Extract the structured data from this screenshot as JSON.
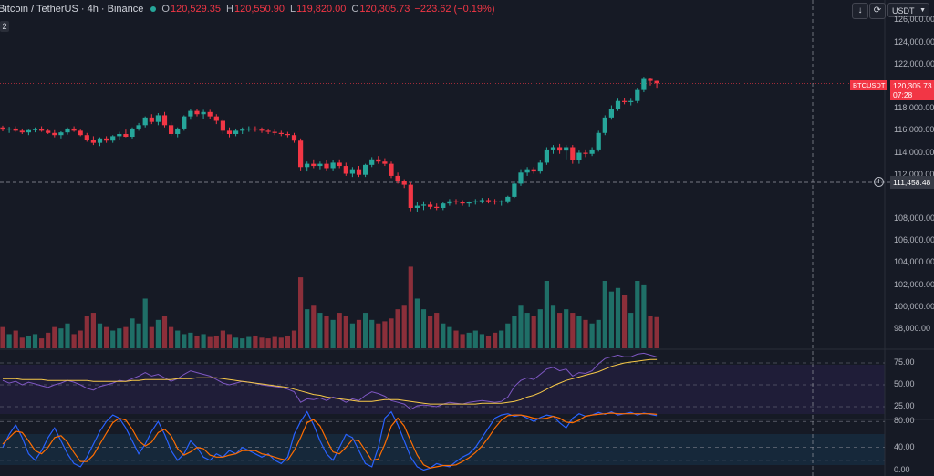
{
  "header": {
    "symbol": "Bitcoin / TetherUS · 4h · Binance",
    "open_label": "O",
    "open": "120,529.35",
    "high_label": "H",
    "high": "120,550.90",
    "low_label": "L",
    "low": "119,820.00",
    "close_label": "C",
    "close": "120,305.73",
    "change": "−223.62 (−0.19%)",
    "indicator_badge": "2"
  },
  "toolbar": {
    "download_icon": "arrow-down-icon",
    "fullscreen_icon": "fullscreen-icon",
    "currency": "USDT"
  },
  "price_axis": {
    "labels": [
      "126,000.00",
      "124,000.00",
      "122,000.00",
      "118,000.00",
      "116,000.00",
      "114,000.00",
      "112,000.00",
      "108,000.00",
      "106,000.00",
      "104,000.00",
      "102,000.00",
      "100,000.00",
      "98,000.00"
    ]
  },
  "tags": {
    "symbol_tag": "BTCUSDT",
    "last_price": "120,305.73",
    "countdown": "07:28",
    "crosshair_price": "111,458.48"
  },
  "rsi_axis": {
    "labels": [
      "75.00",
      "50.00",
      "25.00"
    ]
  },
  "stoch_axis": {
    "labels": [
      "80.00",
      "40.00",
      "0.00"
    ]
  },
  "colors": {
    "background": "#161a25",
    "up": "#26a69a",
    "down": "#f23645",
    "rsi_line": "#7e57c2",
    "rsi_ma": "#f7c948",
    "stoch_k": "#2962ff",
    "stoch_d": "#ff6d00"
  },
  "chart_data": {
    "type": "candlestick",
    "symbol": "BTCUSDT",
    "interval": "4h",
    "ylim": [
      96000,
      127000
    ],
    "candles_ohlc": [
      [
        116300,
        116450,
        115950,
        116100
      ],
      [
        116100,
        116350,
        115800,
        116200
      ],
      [
        116200,
        116400,
        115900,
        116000
      ],
      [
        116000,
        116200,
        115700,
        115850
      ],
      [
        115850,
        116100,
        115600,
        116050
      ],
      [
        116050,
        116300,
        115850,
        116150
      ],
      [
        116150,
        116400,
        115900,
        116000
      ],
      [
        116000,
        116150,
        115700,
        115800
      ],
      [
        115800,
        116050,
        115400,
        115600
      ],
      [
        115600,
        115950,
        115300,
        115850
      ],
      [
        115850,
        116300,
        115650,
        116200
      ],
      [
        116200,
        116400,
        115900,
        116000
      ],
      [
        116000,
        116100,
        115500,
        115600
      ],
      [
        115600,
        115800,
        115000,
        115200
      ],
      [
        115200,
        115500,
        114700,
        114900
      ],
      [
        114900,
        115400,
        114600,
        115300
      ],
      [
        115300,
        115500,
        114900,
        115100
      ],
      [
        115100,
        115600,
        114900,
        115500
      ],
      [
        115500,
        115900,
        115200,
        115700
      ],
      [
        115700,
        116100,
        115400,
        115450
      ],
      [
        115450,
        116300,
        115300,
        116200
      ],
      [
        116200,
        116700,
        116000,
        116500
      ],
      [
        116500,
        117300,
        116300,
        117200
      ],
      [
        117200,
        117500,
        116600,
        116800
      ],
      [
        116800,
        117600,
        116500,
        117400
      ],
      [
        117400,
        117700,
        116300,
        116500
      ],
      [
        116500,
        116800,
        115500,
        115700
      ],
      [
        115700,
        116300,
        115400,
        116200
      ],
      [
        116200,
        117400,
        116000,
        117300
      ],
      [
        117300,
        118000,
        117000,
        117800
      ],
      [
        117800,
        118000,
        117300,
        117500
      ],
      [
        117500,
        117900,
        117100,
        117700
      ],
      [
        117700,
        117900,
        117100,
        117300
      ],
      [
        117300,
        117500,
        116600,
        116900
      ],
      [
        116900,
        117100,
        115700,
        116000
      ],
      [
        116000,
        116300,
        115400,
        115700
      ],
      [
        115700,
        116200,
        115500,
        116000
      ],
      [
        116000,
        116300,
        115700,
        116100
      ],
      [
        116100,
        116400,
        115900,
        116200
      ],
      [
        116200,
        116400,
        115900,
        116100
      ],
      [
        116100,
        116300,
        115800,
        116000
      ],
      [
        116000,
        116200,
        115700,
        115900
      ],
      [
        115900,
        116100,
        115600,
        115800
      ],
      [
        115800,
        116000,
        115500,
        115700
      ],
      [
        115700,
        115900,
        115400,
        115600
      ],
      [
        115600,
        115800,
        114900,
        115100
      ],
      [
        115100,
        115300,
        112400,
        112700
      ],
      [
        112700,
        113200,
        112300,
        113000
      ],
      [
        113000,
        113400,
        112600,
        112800
      ],
      [
        112800,
        113200,
        112500,
        113000
      ],
      [
        113000,
        113300,
        112400,
        112600
      ],
      [
        112600,
        113300,
        112400,
        113100
      ],
      [
        113100,
        113400,
        112600,
        112800
      ],
      [
        112800,
        113100,
        111900,
        112100
      ],
      [
        112100,
        112700,
        111800,
        112500
      ],
      [
        112500,
        112800,
        111800,
        112000
      ],
      [
        112000,
        113000,
        111800,
        112900
      ],
      [
        112900,
        113600,
        112700,
        113400
      ],
      [
        113400,
        113700,
        113000,
        113200
      ],
      [
        113200,
        113500,
        112800,
        113000
      ],
      [
        113000,
        113200,
        111700,
        111900
      ],
      [
        111900,
        112200,
        111200,
        111400
      ],
      [
        111400,
        111600,
        110800,
        111100
      ],
      [
        111100,
        111300,
        108700,
        109000
      ],
      [
        109000,
        109500,
        108600,
        109200
      ],
      [
        109200,
        109600,
        108800,
        109300
      ],
      [
        109300,
        109600,
        108900,
        109100
      ],
      [
        109100,
        109400,
        108800,
        109000
      ],
      [
        109000,
        109500,
        108800,
        109400
      ],
      [
        109400,
        109800,
        109200,
        109600
      ],
      [
        109600,
        109800,
        109300,
        109500
      ],
      [
        109500,
        109700,
        109200,
        109400
      ],
      [
        109400,
        109600,
        109100,
        109500
      ],
      [
        109500,
        109800,
        109300,
        109600
      ],
      [
        109600,
        109900,
        109400,
        109700
      ],
      [
        109700,
        109900,
        109400,
        109600
      ],
      [
        109600,
        109800,
        109300,
        109500
      ],
      [
        109500,
        109700,
        109200,
        109600
      ],
      [
        109600,
        110100,
        109400,
        110000
      ],
      [
        110000,
        111400,
        109900,
        111200
      ],
      [
        111200,
        112500,
        111000,
        112200
      ],
      [
        112200,
        112700,
        111900,
        112500
      ],
      [
        112500,
        112700,
        112100,
        112300
      ],
      [
        112300,
        113300,
        112100,
        113100
      ],
      [
        113100,
        114500,
        112900,
        114300
      ],
      [
        114300,
        114700,
        113900,
        114500
      ],
      [
        114500,
        114800,
        113900,
        114200
      ],
      [
        114200,
        114700,
        113400,
        114500
      ],
      [
        114500,
        114700,
        113000,
        113300
      ],
      [
        113300,
        114200,
        113000,
        114000
      ],
      [
        114000,
        114300,
        113600,
        113900
      ],
      [
        113900,
        114500,
        113700,
        114300
      ],
      [
        114300,
        116000,
        114100,
        115800
      ],
      [
        115800,
        117400,
        115600,
        117200
      ],
      [
        117200,
        118300,
        117000,
        118000
      ],
      [
        118000,
        118900,
        117800,
        118700
      ],
      [
        118700,
        119000,
        118400,
        118600
      ],
      [
        118600,
        118900,
        118300,
        118700
      ],
      [
        118700,
        119900,
        118500,
        119700
      ],
      [
        119700,
        120900,
        119500,
        120700
      ],
      [
        120700,
        120800,
        120100,
        120529
      ],
      [
        120529,
        120551,
        119820,
        120306
      ]
    ],
    "volume_relative": [
      0.3,
      0.2,
      0.25,
      0.15,
      0.18,
      0.2,
      0.14,
      0.22,
      0.3,
      0.28,
      0.35,
      0.2,
      0.25,
      0.45,
      0.5,
      0.35,
      0.3,
      0.25,
      0.28,
      0.3,
      0.42,
      0.35,
      0.7,
      0.3,
      0.4,
      0.45,
      0.3,
      0.25,
      0.2,
      0.22,
      0.18,
      0.2,
      0.16,
      0.18,
      0.25,
      0.2,
      0.15,
      0.14,
      0.16,
      0.18,
      0.15,
      0.14,
      0.16,
      0.15,
      0.18,
      0.25,
      1.0,
      0.55,
      0.6,
      0.5,
      0.45,
      0.4,
      0.5,
      0.45,
      0.35,
      0.4,
      0.5,
      0.4,
      0.35,
      0.38,
      0.42,
      0.55,
      0.6,
      1.15,
      0.7,
      0.55,
      0.45,
      0.5,
      0.35,
      0.3,
      0.25,
      0.2,
      0.22,
      0.25,
      0.2,
      0.18,
      0.22,
      0.25,
      0.35,
      0.45,
      0.6,
      0.5,
      0.45,
      0.55,
      0.95,
      0.6,
      0.5,
      0.55,
      0.5,
      0.45,
      0.4,
      0.35,
      0.4,
      0.95,
      0.8,
      0.85,
      0.75,
      0.5,
      0.95,
      0.9,
      0.45,
      0.44
    ],
    "rsi": [
      55,
      52,
      54,
      50,
      53,
      51,
      49,
      47,
      50,
      52,
      55,
      53,
      50,
      46,
      44,
      48,
      50,
      52,
      55,
      54,
      57,
      60,
      64,
      60,
      62,
      58,
      54,
      57,
      62,
      66,
      64,
      62,
      60,
      56,
      52,
      50,
      52,
      54,
      53,
      52,
      50,
      49,
      48,
      47,
      45,
      42,
      30,
      34,
      33,
      35,
      32,
      36,
      34,
      30,
      34,
      32,
      38,
      42,
      40,
      37,
      32,
      30,
      28,
      22,
      26,
      27,
      26,
      25,
      28,
      30,
      29,
      28,
      30,
      31,
      32,
      31,
      30,
      31,
      36,
      48,
      55,
      58,
      56,
      62,
      68,
      70,
      66,
      68,
      60,
      64,
      63,
      66,
      74,
      80,
      82,
      84,
      82,
      82,
      85,
      86,
      84,
      82
    ],
    "rsi_ma": [
      57,
      57,
      57,
      56,
      56,
      56,
      56,
      55,
      55,
      55,
      55,
      55,
      55,
      55,
      54,
      54,
      54,
      54,
      54,
      54,
      55,
      55,
      56,
      56,
      56,
      56,
      56,
      57,
      57,
      57,
      58,
      58,
      58,
      58,
      57,
      56,
      55,
      54,
      53,
      52,
      51,
      50,
      49,
      48,
      47,
      45,
      43,
      41,
      39,
      38,
      36,
      35,
      34,
      33,
      32,
      31,
      31,
      31,
      32,
      33,
      33,
      33,
      32,
      31,
      30,
      29,
      28,
      28,
      28,
      28,
      28,
      28,
      28,
      28,
      29,
      29,
      29,
      29,
      30,
      31,
      33,
      36,
      38,
      41,
      45,
      49,
      52,
      55,
      57,
      59,
      61,
      63,
      65,
      68,
      71,
      73,
      75,
      76,
      77,
      78,
      79,
      79
    ],
    "stoch_k": [
      40,
      60,
      75,
      55,
      30,
      20,
      35,
      55,
      70,
      50,
      30,
      15,
      10,
      25,
      45,
      65,
      80,
      90,
      85,
      70,
      50,
      30,
      45,
      65,
      80,
      60,
      35,
      20,
      30,
      50,
      40,
      25,
      20,
      30,
      25,
      35,
      30,
      40,
      35,
      30,
      25,
      30,
      20,
      15,
      25,
      60,
      80,
      95,
      75,
      50,
      30,
      20,
      40,
      60,
      55,
      35,
      15,
      10,
      40,
      85,
      95,
      75,
      50,
      25,
      10,
      5,
      8,
      15,
      12,
      10,
      18,
      25,
      30,
      40,
      55,
      70,
      85,
      90,
      92,
      88,
      90,
      85,
      80,
      86,
      90,
      88,
      78,
      70,
      85,
      92,
      88,
      90,
      94,
      91,
      95,
      90,
      92,
      94,
      90,
      93,
      91,
      89
    ],
    "stoch_d": [
      45,
      55,
      65,
      63,
      50,
      35,
      30,
      40,
      55,
      58,
      48,
      32,
      18,
      18,
      28,
      45,
      62,
      78,
      85,
      82,
      68,
      50,
      42,
      48,
      63,
      68,
      58,
      38,
      28,
      33,
      40,
      38,
      28,
      25,
      25,
      28,
      30,
      35,
      35,
      35,
      30,
      28,
      25,
      22,
      20,
      35,
      55,
      78,
      83,
      73,
      52,
      33,
      30,
      40,
      52,
      50,
      35,
      20,
      22,
      45,
      73,
      85,
      73,
      50,
      28,
      13,
      8,
      10,
      12,
      12,
      13,
      18,
      24,
      32,
      42,
      55,
      70,
      82,
      89,
      90,
      90,
      88,
      85,
      84,
      85,
      88,
      85,
      79,
      78,
      82,
      88,
      90,
      91,
      92,
      93,
      92,
      92,
      92,
      92,
      92,
      92,
      91
    ],
    "axes": {
      "price_ticks": [
        126000,
        124000,
        122000,
        118000,
        116000,
        114000,
        112000,
        108000,
        106000,
        104000,
        102000,
        100000,
        98000
      ],
      "rsi_levels": [
        25,
        50,
        75
      ],
      "stoch_levels": [
        0,
        40,
        80
      ]
    },
    "last_price": 120305.73,
    "crosshair_price": 111458.48,
    "grid": true
  }
}
